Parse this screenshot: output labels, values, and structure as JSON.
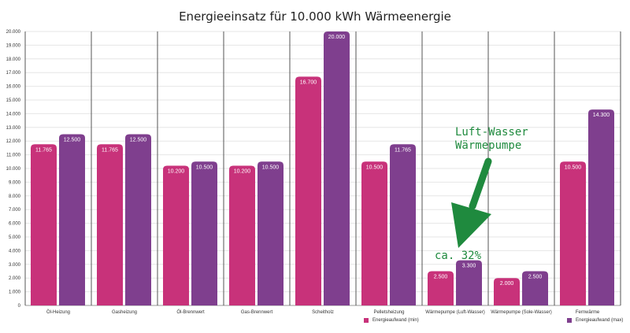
{
  "chart_data": {
    "type": "bar",
    "title": "Energieeinsatz für 10.000 kWh Wärmeenergie",
    "categories": [
      "Öl-Heizung",
      "Gasheizung",
      "Öl-Brennwert",
      "Gas-Brennwert",
      "Scheitholz",
      "Pelletsheizung",
      "Wärmepumpe (Luft-Wasser)",
      "Wärmepumpe (Sole-Wasser)",
      "Fernwärme"
    ],
    "series": [
      {
        "name": "Energieaufwand (min)",
        "color": "#c8327a",
        "values": [
          11765,
          11765,
          10200,
          10200,
          16700,
          10500,
          2500,
          2000,
          10500
        ],
        "labels": [
          "11.765",
          "11.765",
          "10.200",
          "10.200",
          "16.700",
          "10.500",
          "2.500",
          "2.000",
          "10.500"
        ]
      },
      {
        "name": "Energieaufwand (max)",
        "color": "#7f3f8e",
        "values": [
          12500,
          12500,
          10500,
          10500,
          20000,
          11765,
          3300,
          2500,
          14300
        ],
        "labels": [
          "12.500",
          "12.500",
          "10.500",
          "10.500",
          "20.000",
          "11.765",
          "3.300",
          "2.500",
          "14.300"
        ]
      }
    ],
    "ylim": [
      0,
      20000
    ],
    "yticks": [
      "0",
      "1.000",
      "2.000",
      "3.000",
      "4.000",
      "5.000",
      "6.000",
      "7.000",
      "8.000",
      "9.000",
      "10.000",
      "11.000",
      "12.000",
      "13.000",
      "14.000",
      "15.000",
      "16.000",
      "17.000",
      "18.000",
      "19.000",
      "20.000"
    ],
    "grid": true,
    "legend": "bottom",
    "annotations": {
      "label1": "Luft-Wasser",
      "label2": "Wärmepumpe",
      "percent": "ca. 32%",
      "arrow_color": "#1f8a3e"
    }
  }
}
